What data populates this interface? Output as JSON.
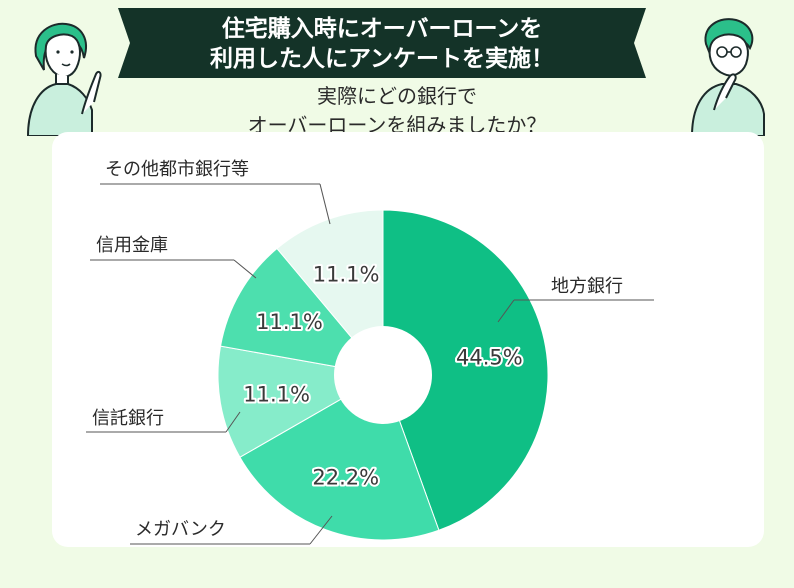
{
  "banner": {
    "line1": "住宅購入時にオーバーローンを",
    "line2": "利用した人にアンケートを実施！"
  },
  "question": {
    "line1": "実際にどの銀行で",
    "line2": "オーバーローンを組みましたか？"
  },
  "colors": {
    "background": "#f0fbe6",
    "banner": "#143328",
    "slices": [
      "#0fbf85",
      "#3fdcaa",
      "#86ecca",
      "#4ddfae",
      "#e6f8f0"
    ]
  },
  "chart_data": {
    "type": "pie",
    "style": "donut",
    "slices": [
      {
        "label": "地方銀行",
        "value": 44.5,
        "display": "44.5%"
      },
      {
        "label": "メガバンク",
        "value": 22.2,
        "display": "22.2%"
      },
      {
        "label": "信託銀行",
        "value": 11.1,
        "display": "11.1%"
      },
      {
        "label": "信用金庫",
        "value": 11.1,
        "display": "11.1%"
      },
      {
        "label": "その他都市銀行等",
        "value": 11.1,
        "display": "11.1%"
      }
    ]
  }
}
